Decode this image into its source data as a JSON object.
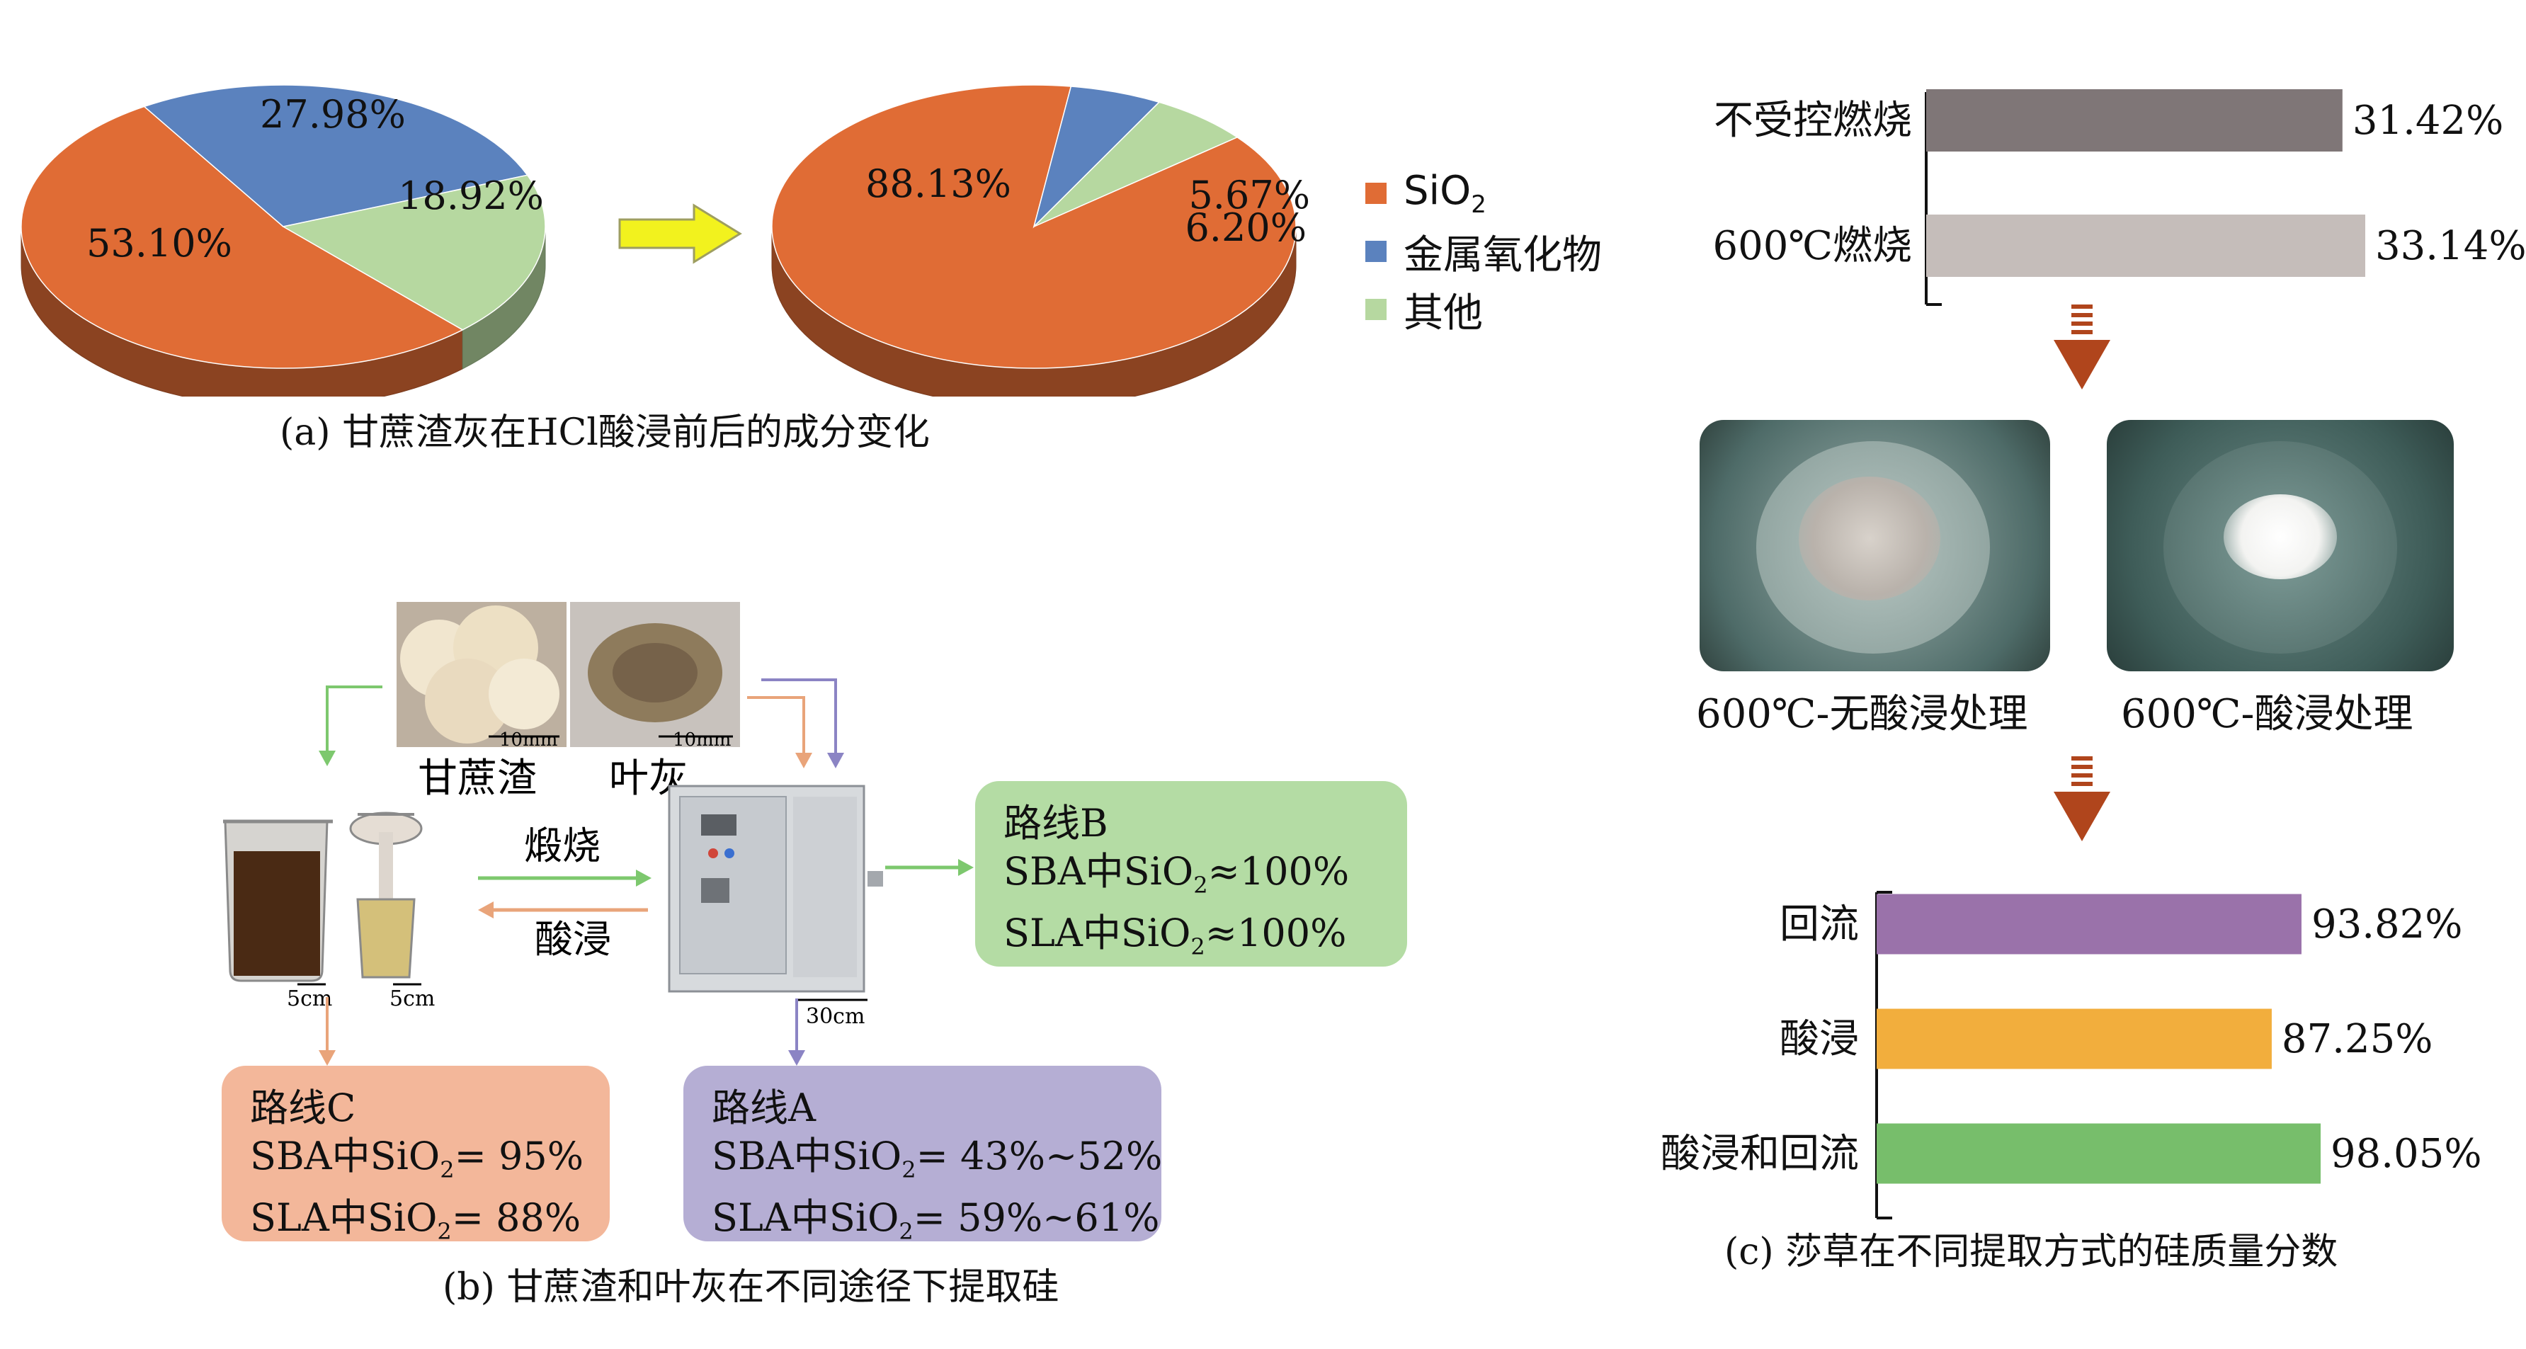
{
  "panel_a": {
    "caption": "(a) 甘蔗渣灰在HCl酸浸前后的成分变化",
    "legend": [
      {
        "label_main": "SiO",
        "label_sub": "2",
        "color": "#E06C35"
      },
      {
        "label_main": "金属氧化物",
        "label_sub": "",
        "color": "#5B82BE"
      },
      {
        "label_main": "其他",
        "label_sub": "",
        "color": "#B6D8A0"
      }
    ]
  },
  "panel_b": {
    "caption": "(b) 甘蔗渣和叶灰在不同途径下提取硅",
    "photo_labels": {
      "bagasse": "甘蔗渣",
      "leaf_ash": "叶灰"
    },
    "scale_labels": {
      "photo_left": "10mm",
      "photo_right": "10mm",
      "beaker_left": "5cm",
      "beaker_right": "5cm",
      "furnace": "30cm"
    },
    "arrow_labels": {
      "calcine": "煅烧",
      "acid_leach": "酸浸"
    },
    "route_b": {
      "title": "路线B",
      "line1_pre": "SBA中SiO",
      "line1_sub": "2",
      "line1_post": "≈100%",
      "line2_pre": "SLA中SiO",
      "line2_sub": "2",
      "line2_post": "≈100%"
    },
    "route_c": {
      "title": "路线C",
      "line1_pre": "SBA中SiO",
      "line1_sub": "2",
      "line1_post": "= 95%",
      "line2_pre": "SLA中SiO",
      "line2_sub": "2",
      "line2_post": "= 88%"
    },
    "route_a": {
      "title": "路线A",
      "line1_pre": "SBA中SiO",
      "line1_sub": "2",
      "line1_post": "= 43%~52%",
      "line2_pre": "SLA中SiO",
      "line2_sub": "2",
      "line2_post": "= 59%~61%"
    }
  },
  "panel_c": {
    "caption": "(c) 莎草在不同提取方式的硅质量分数",
    "photo_labels": {
      "left": "600℃-无酸浸处理",
      "right": "600℃-酸浸处理"
    }
  },
  "chart_data": [
    {
      "type": "pie",
      "categories": [
        "SiO2",
        "金属氧化物",
        "其他"
      ],
      "values": [
        53.1,
        27.98,
        18.92
      ],
      "value_labels": [
        "53.10%",
        "27.98%",
        "18.92%"
      ],
      "colors": [
        "#E06C35",
        "#5B82BE",
        "#B6D8A0"
      ]
    },
    {
      "type": "pie",
      "categories": [
        "SiO2",
        "金属氧化物",
        "其他"
      ],
      "values": [
        88.13,
        5.67,
        6.2
      ],
      "value_labels": [
        "88.13%",
        "5.67%",
        "6.20%"
      ],
      "colors": [
        "#E06C35",
        "#5B82BE",
        "#B6D8A0"
      ]
    },
    {
      "type": "bar",
      "orientation": "horizontal",
      "categories": [
        "不受控燃烧",
        "600℃燃烧"
      ],
      "values": [
        31.42,
        33.14
      ],
      "value_labels": [
        "31.42%",
        "33.14%"
      ],
      "colors": [
        "#7F7677",
        "#C5BDBA"
      ]
    },
    {
      "type": "bar",
      "orientation": "horizontal",
      "categories": [
        "回流",
        "酸浸",
        "酸浸和回流"
      ],
      "values": [
        93.82,
        87.25,
        98.05
      ],
      "value_labels": [
        "93.82%",
        "87.25%",
        "98.05%"
      ],
      "colors": [
        "#9A72AA",
        "#F2AE3D",
        "#77BE6B"
      ]
    }
  ]
}
